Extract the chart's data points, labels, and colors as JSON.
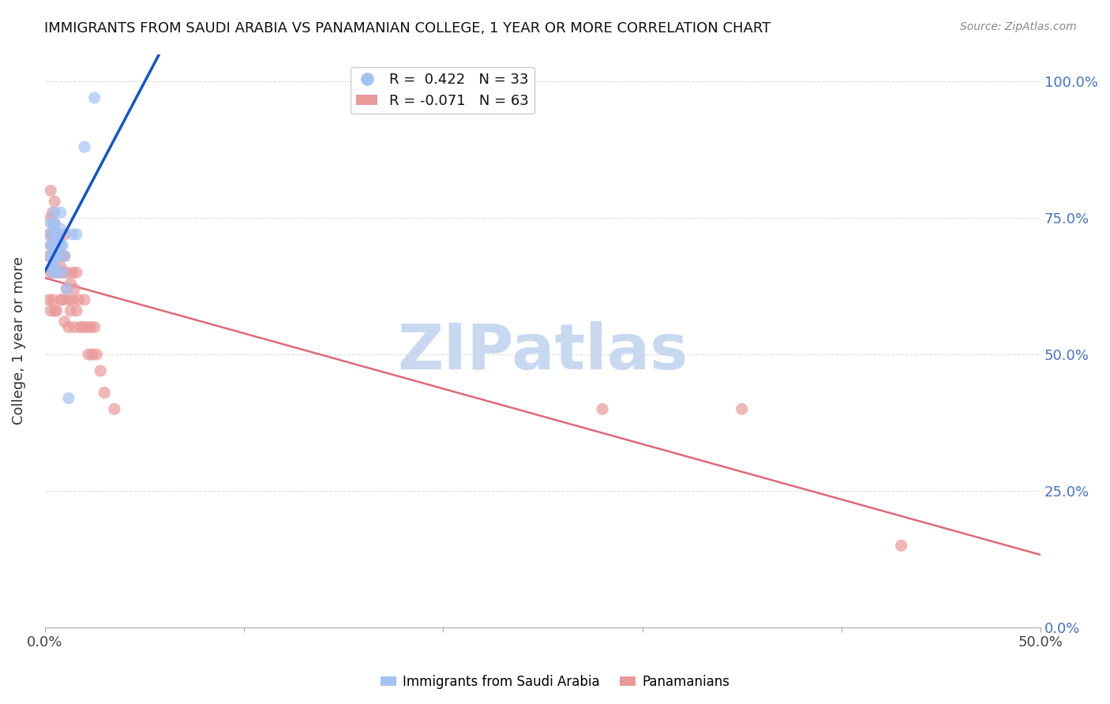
{
  "title": "IMMIGRANTS FROM SAUDI ARABIA VS PANAMANIAN COLLEGE, 1 YEAR OR MORE CORRELATION CHART",
  "source": "Source: ZipAtlas.com",
  "ylabel": "College, 1 year or more",
  "xlim": [
    0.0,
    0.5
  ],
  "ylim": [
    0.0,
    1.05
  ],
  "blue_r": 0.422,
  "blue_n": 33,
  "pink_r": -0.071,
  "pink_n": 63,
  "blue_color": "#a4c2f4",
  "pink_color": "#ea9999",
  "blue_line_color": "#1155cc",
  "pink_line_color": "#e06878",
  "watermark": "ZIPatlas",
  "watermark_color": "#c8d8f0",
  "blue_scatter_x": [
    0.003,
    0.003,
    0.003,
    0.003,
    0.004,
    0.004,
    0.004,
    0.004,
    0.004,
    0.005,
    0.005,
    0.005,
    0.005,
    0.005,
    0.005,
    0.005,
    0.006,
    0.006,
    0.006,
    0.007,
    0.007,
    0.008,
    0.008,
    0.008,
    0.009,
    0.009,
    0.01,
    0.011,
    0.012,
    0.014,
    0.016,
    0.02,
    0.025
  ],
  "blue_scatter_y": [
    0.68,
    0.72,
    0.7,
    0.74,
    0.66,
    0.7,
    0.74,
    0.68,
    0.65,
    0.72,
    0.7,
    0.68,
    0.74,
    0.76,
    0.66,
    0.7,
    0.72,
    0.68,
    0.65,
    0.72,
    0.68,
    0.7,
    0.73,
    0.76,
    0.7,
    0.65,
    0.68,
    0.62,
    0.42,
    0.72,
    0.72,
    0.88,
    0.97
  ],
  "pink_scatter_x": [
    0.002,
    0.002,
    0.002,
    0.003,
    0.003,
    0.003,
    0.003,
    0.003,
    0.004,
    0.004,
    0.004,
    0.004,
    0.004,
    0.004,
    0.005,
    0.005,
    0.005,
    0.005,
    0.005,
    0.006,
    0.006,
    0.006,
    0.006,
    0.007,
    0.007,
    0.007,
    0.008,
    0.008,
    0.008,
    0.009,
    0.009,
    0.009,
    0.01,
    0.01,
    0.01,
    0.011,
    0.011,
    0.012,
    0.012,
    0.013,
    0.013,
    0.014,
    0.014,
    0.015,
    0.015,
    0.016,
    0.016,
    0.017,
    0.018,
    0.019,
    0.02,
    0.021,
    0.022,
    0.023,
    0.024,
    0.025,
    0.026,
    0.028,
    0.03,
    0.035,
    0.28,
    0.35,
    0.43
  ],
  "pink_scatter_y": [
    0.72,
    0.68,
    0.6,
    0.8,
    0.75,
    0.7,
    0.65,
    0.58,
    0.76,
    0.72,
    0.68,
    0.65,
    0.72,
    0.6,
    0.78,
    0.74,
    0.7,
    0.66,
    0.58,
    0.72,
    0.68,
    0.65,
    0.58,
    0.72,
    0.68,
    0.65,
    0.7,
    0.66,
    0.6,
    0.68,
    0.65,
    0.6,
    0.72,
    0.68,
    0.56,
    0.65,
    0.62,
    0.6,
    0.55,
    0.63,
    0.58,
    0.65,
    0.6,
    0.62,
    0.55,
    0.65,
    0.58,
    0.6,
    0.55,
    0.55,
    0.6,
    0.55,
    0.5,
    0.55,
    0.5,
    0.55,
    0.5,
    0.47,
    0.43,
    0.4,
    0.4,
    0.4,
    0.15
  ],
  "background_color": "#ffffff",
  "grid_color": "#dddddd"
}
